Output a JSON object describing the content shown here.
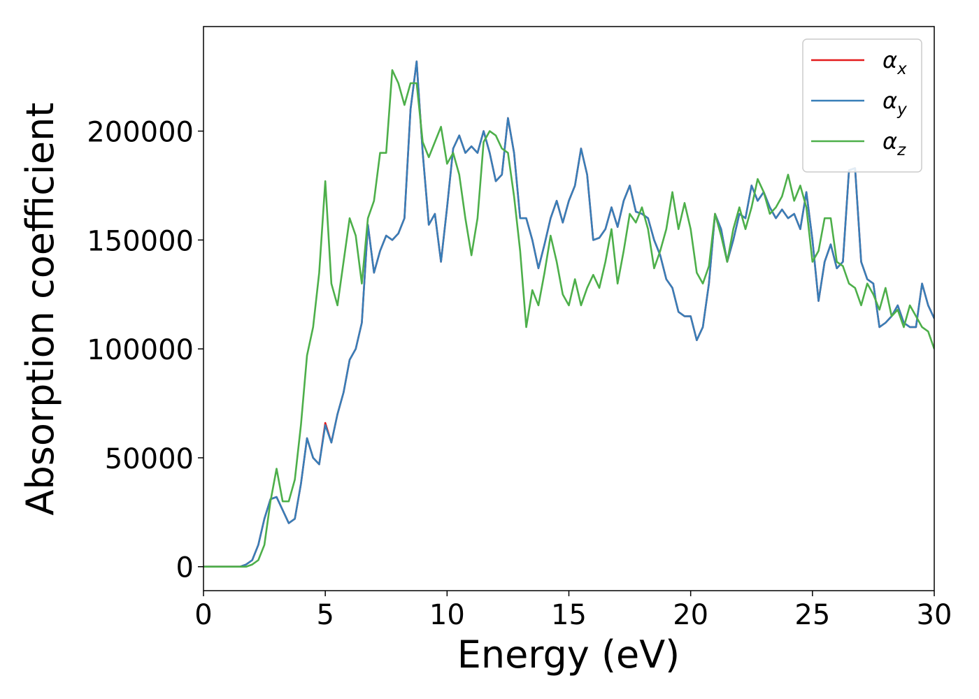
{
  "chart_data": {
    "type": "line",
    "xlabel": "Energy (eV)",
    "ylabel": "Absorption coefficient",
    "x": [
      0,
      0.25,
      0.5,
      0.75,
      1,
      1.25,
      1.5,
      1.75,
      2,
      2.25,
      2.5,
      2.75,
      3,
      3.25,
      3.5,
      3.75,
      4,
      4.25,
      4.5,
      4.75,
      5,
      5.25,
      5.5,
      5.75,
      6,
      6.25,
      6.5,
      6.75,
      7,
      7.25,
      7.5,
      7.75,
      8,
      8.25,
      8.5,
      8.75,
      9,
      9.25,
      9.5,
      9.75,
      10,
      10.25,
      10.5,
      10.75,
      11,
      11.25,
      11.5,
      11.75,
      12,
      12.25,
      12.5,
      12.75,
      13,
      13.25,
      13.5,
      13.75,
      14,
      14.25,
      14.5,
      14.75,
      15,
      15.25,
      15.5,
      15.75,
      16,
      16.25,
      16.5,
      16.75,
      17,
      17.25,
      17.5,
      17.75,
      18,
      18.25,
      18.5,
      18.75,
      19,
      19.25,
      19.5,
      19.75,
      20,
      20.25,
      20.5,
      20.75,
      21,
      21.25,
      21.5,
      21.75,
      22,
      22.25,
      22.5,
      22.75,
      23,
      23.25,
      23.5,
      23.75,
      24,
      24.25,
      24.5,
      24.75,
      25,
      25.25,
      25.5,
      25.75,
      26,
      26.25,
      26.5,
      26.75,
      27,
      27.25,
      27.5,
      27.75,
      28,
      28.25,
      28.5,
      28.75,
      29,
      29.25,
      29.5,
      29.75,
      30
    ],
    "series": [
      {
        "name": "αx",
        "color": "#e41a1c",
        "values": [
          0,
          0,
          0,
          0,
          0,
          0,
          0,
          1000,
          3000,
          10000,
          22000,
          31000,
          32000,
          26000,
          20000,
          22000,
          38000,
          59000,
          50000,
          47000,
          66000,
          57000,
          70000,
          80000,
          95000,
          100000,
          112000,
          157000,
          135000,
          145000,
          152000,
          150000,
          153000,
          160000,
          210000,
          232000,
          190000,
          157000,
          162000,
          140000,
          165000,
          192000,
          198000,
          190000,
          193000,
          190000,
          200000,
          190000,
          177000,
          180000,
          206000,
          190000,
          160000,
          160000,
          150000,
          137000,
          148000,
          160000,
          168000,
          158000,
          168000,
          175000,
          192000,
          180000,
          150000,
          151000,
          155000,
          165000,
          156000,
          168000,
          175000,
          163000,
          162000,
          160000,
          150000,
          143000,
          132000,
          128000,
          117000,
          115000,
          115000,
          104000,
          110000,
          130000,
          162000,
          155000,
          140000,
          150000,
          162000,
          160000,
          175000,
          168000,
          172000,
          165000,
          160000,
          164000,
          160000,
          162000,
          155000,
          172000,
          150000,
          122000,
          140000,
          148000,
          137000,
          140000,
          182000,
          183000,
          140000,
          132000,
          130000,
          110000,
          112000,
          115000,
          120000,
          112000,
          110000,
          110000,
          130000,
          120000,
          114000
        ]
      },
      {
        "name": "αy",
        "color": "#377eb8",
        "values": [
          0,
          0,
          0,
          0,
          0,
          0,
          0,
          1000,
          3000,
          10000,
          22000,
          31000,
          32000,
          26000,
          20000,
          22000,
          38000,
          59000,
          50000,
          47000,
          65000,
          57000,
          70000,
          80000,
          95000,
          100000,
          112000,
          157000,
          135000,
          145000,
          152000,
          150000,
          153000,
          160000,
          210000,
          232000,
          190000,
          157000,
          162000,
          140000,
          165000,
          192000,
          198000,
          190000,
          193000,
          190000,
          200000,
          190000,
          177000,
          180000,
          206000,
          190000,
          160000,
          160000,
          150000,
          137000,
          148000,
          160000,
          168000,
          158000,
          168000,
          175000,
          192000,
          180000,
          150000,
          151000,
          155000,
          165000,
          156000,
          168000,
          175000,
          163000,
          162000,
          160000,
          150000,
          143000,
          132000,
          128000,
          117000,
          115000,
          115000,
          104000,
          110000,
          130000,
          162000,
          155000,
          140000,
          150000,
          162000,
          160000,
          175000,
          168000,
          172000,
          165000,
          160000,
          164000,
          160000,
          162000,
          155000,
          172000,
          150000,
          122000,
          140000,
          148000,
          137000,
          140000,
          182000,
          183000,
          140000,
          132000,
          130000,
          110000,
          112000,
          115000,
          120000,
          112000,
          110000,
          110000,
          130000,
          120000,
          114000
        ]
      },
      {
        "name": "αz",
        "color": "#4daf4a",
        "values": [
          0,
          0,
          0,
          0,
          0,
          0,
          0,
          0,
          1000,
          3000,
          10000,
          30000,
          45000,
          30000,
          30000,
          40000,
          65000,
          97000,
          110000,
          135000,
          177000,
          130000,
          120000,
          140000,
          160000,
          152000,
          130000,
          160000,
          168000,
          190000,
          190000,
          228000,
          222000,
          212000,
          222000,
          222000,
          195000,
          188000,
          195000,
          202000,
          185000,
          190000,
          180000,
          160000,
          143000,
          160000,
          195000,
          200000,
          198000,
          192000,
          190000,
          170000,
          145000,
          110000,
          127000,
          120000,
          135000,
          152000,
          140000,
          125000,
          120000,
          132000,
          120000,
          128000,
          134000,
          128000,
          140000,
          155000,
          130000,
          145000,
          162000,
          158000,
          165000,
          155000,
          137000,
          145000,
          155000,
          172000,
          155000,
          167000,
          155000,
          135000,
          130000,
          138000,
          162000,
          152000,
          140000,
          155000,
          165000,
          155000,
          165000,
          178000,
          172000,
          162000,
          165000,
          170000,
          180000,
          168000,
          175000,
          165000,
          140000,
          145000,
          160000,
          160000,
          140000,
          138000,
          130000,
          128000,
          120000,
          130000,
          125000,
          118000,
          128000,
          115000,
          118000,
          110000,
          120000,
          115000,
          110000,
          108000,
          100000
        ]
      }
    ],
    "xlim": [
      0,
      30
    ],
    "xticks": [
      0,
      5,
      10,
      15,
      20,
      25,
      30
    ],
    "ylim": [
      -11000,
      248000
    ],
    "yticks": [
      0,
      50000,
      100000,
      150000,
      200000
    ],
    "grid": false,
    "legend": "upper right"
  }
}
